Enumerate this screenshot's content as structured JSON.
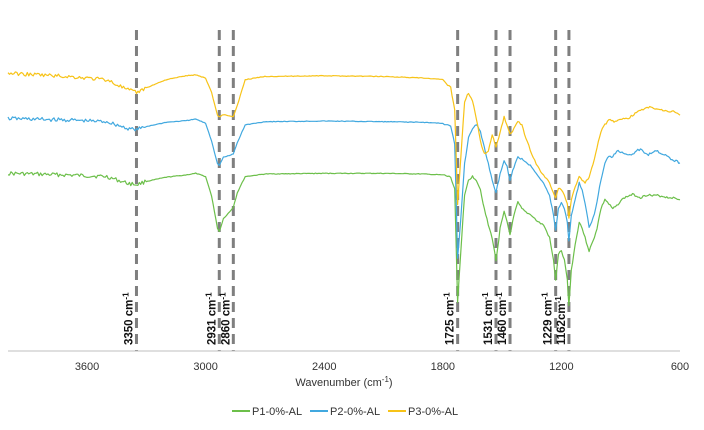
{
  "chart_data": {
    "type": "line",
    "xlabel": "Wavenumber (cm",
    "xlabel_sup": "-1",
    "xlabel_close": ")",
    "xlim": [
      4000,
      600
    ],
    "x_reversed": true,
    "xticks": [
      3600,
      3000,
      2400,
      1800,
      1200,
      600
    ],
    "xtick_labels": [
      "3600",
      "3000",
      "2400",
      "1800",
      "1200",
      "600"
    ],
    "grid": false,
    "legend_position": "bottom",
    "peaks": [
      {
        "x": 3350,
        "label": "3350 cm",
        "sup": "-1"
      },
      {
        "x": 2931,
        "label": "2931 cm",
        "sup": "-1"
      },
      {
        "x": 2860,
        "label": "2860 cm",
        "sup": "-1"
      },
      {
        "x": 1725,
        "label": "1725 cm",
        "sup": "-1"
      },
      {
        "x": 1531,
        "label": "1531 cm",
        "sup": "-1"
      },
      {
        "x": 1460,
        "label": "1460 cm",
        "sup": "-1"
      },
      {
        "x": 1229,
        "label": "1229 cm",
        "sup": "-1"
      },
      {
        "x": 1162,
        "label": "1162cm",
        "sup": "-1"
      }
    ],
    "series": [
      {
        "name": "P1-0%-AL",
        "color": "#6cbf4a",
        "x": [
          4000,
          3700,
          3500,
          3400,
          3350,
          3300,
          3200,
          3100,
          3050,
          3000,
          2970,
          2940,
          2931,
          2910,
          2880,
          2860,
          2840,
          2800,
          2700,
          2400,
          2100,
          1900,
          1800,
          1760,
          1740,
          1725,
          1710,
          1690,
          1670,
          1650,
          1630,
          1610,
          1590,
          1570,
          1550,
          1531,
          1510,
          1490,
          1475,
          1460,
          1440,
          1420,
          1400,
          1380,
          1350,
          1320,
          1290,
          1260,
          1240,
          1229,
          1215,
          1200,
          1185,
          1170,
          1162,
          1150,
          1130,
          1110,
          1095,
          1080,
          1060,
          1040,
          1020,
          1000,
          980,
          960,
          940,
          920,
          900,
          880,
          860,
          840,
          820,
          800,
          780,
          760,
          740,
          720,
          700,
          680,
          660,
          640,
          620,
          600
        ],
        "y": [
          0.45,
          0.455,
          0.46,
          0.48,
          0.485,
          0.475,
          0.462,
          0.455,
          0.45,
          0.46,
          0.52,
          0.62,
          0.63,
          0.59,
          0.57,
          0.555,
          0.51,
          0.46,
          0.452,
          0.45,
          0.45,
          0.452,
          0.455,
          0.462,
          0.5,
          0.85,
          0.7,
          0.52,
          0.47,
          0.46,
          0.47,
          0.5,
          0.56,
          0.61,
          0.65,
          0.72,
          0.62,
          0.57,
          0.6,
          0.64,
          0.58,
          0.54,
          0.56,
          0.57,
          0.58,
          0.6,
          0.61,
          0.65,
          0.72,
          0.78,
          0.7,
          0.69,
          0.72,
          0.78,
          0.86,
          0.75,
          0.67,
          0.6,
          0.62,
          0.65,
          0.69,
          0.66,
          0.62,
          0.56,
          0.53,
          0.545,
          0.56,
          0.55,
          0.535,
          0.525,
          0.52,
          0.515,
          0.52,
          0.525,
          0.52,
          0.515,
          0.52,
          0.518,
          0.52,
          0.522,
          0.525,
          0.525,
          0.528,
          0.532
        ]
      },
      {
        "name": "P2-0%-AL",
        "color": "#41a8df",
        "x": [
          4000,
          3700,
          3500,
          3400,
          3350,
          3300,
          3200,
          3100,
          3050,
          3000,
          2970,
          2940,
          2931,
          2910,
          2880,
          2860,
          2840,
          2800,
          2700,
          2400,
          2100,
          1900,
          1800,
          1760,
          1740,
          1725,
          1710,
          1690,
          1670,
          1650,
          1630,
          1610,
          1590,
          1570,
          1550,
          1531,
          1510,
          1490,
          1475,
          1460,
          1440,
          1420,
          1400,
          1380,
          1350,
          1320,
          1290,
          1260,
          1240,
          1229,
          1215,
          1200,
          1185,
          1170,
          1162,
          1150,
          1130,
          1110,
          1095,
          1080,
          1060,
          1040,
          1020,
          1000,
          980,
          960,
          940,
          920,
          900,
          880,
          860,
          840,
          820,
          800,
          780,
          760,
          740,
          720,
          700,
          680,
          660,
          640,
          620,
          600
        ],
        "y": [
          0.28,
          0.285,
          0.29,
          0.31,
          0.315,
          0.305,
          0.292,
          0.287,
          0.282,
          0.295,
          0.35,
          0.42,
          0.425,
          0.4,
          0.395,
          0.39,
          0.355,
          0.3,
          0.29,
          0.288,
          0.29,
          0.292,
          0.295,
          0.305,
          0.36,
          0.715,
          0.6,
          0.42,
          0.34,
          0.31,
          0.3,
          0.32,
          0.37,
          0.42,
          0.47,
          0.51,
          0.45,
          0.41,
          0.43,
          0.47,
          0.43,
          0.4,
          0.405,
          0.415,
          0.43,
          0.455,
          0.48,
          0.52,
          0.58,
          0.625,
          0.56,
          0.54,
          0.56,
          0.6,
          0.66,
          0.58,
          0.53,
          0.48,
          0.5,
          0.545,
          0.615,
          0.59,
          0.54,
          0.47,
          0.42,
          0.395,
          0.4,
          0.38,
          0.385,
          0.39,
          0.392,
          0.39,
          0.38,
          0.376,
          0.385,
          0.392,
          0.384,
          0.378,
          0.386,
          0.392,
          0.4,
          0.408,
          0.412,
          0.418
        ]
      },
      {
        "name": "P3-0%-AL",
        "color": "#f7c318",
        "x": [
          4000,
          3700,
          3500,
          3400,
          3350,
          3300,
          3200,
          3100,
          3050,
          3000,
          2970,
          2940,
          2931,
          2910,
          2880,
          2860,
          2840,
          2800,
          2700,
          2400,
          2100,
          1900,
          1800,
          1760,
          1740,
          1725,
          1710,
          1690,
          1670,
          1650,
          1630,
          1610,
          1590,
          1570,
          1550,
          1531,
          1510,
          1490,
          1475,
          1460,
          1440,
          1420,
          1400,
          1380,
          1350,
          1320,
          1290,
          1260,
          1240,
          1229,
          1215,
          1200,
          1185,
          1170,
          1162,
          1150,
          1130,
          1110,
          1095,
          1080,
          1060,
          1040,
          1020,
          1000,
          980,
          960,
          940,
          920,
          900,
          880,
          860,
          840,
          820,
          800,
          780,
          760,
          740,
          720,
          700,
          680,
          660,
          640,
          620,
          600
        ],
        "y": [
          0.14,
          0.15,
          0.16,
          0.19,
          0.2,
          0.185,
          0.16,
          0.148,
          0.145,
          0.155,
          0.2,
          0.27,
          0.275,
          0.268,
          0.272,
          0.275,
          0.24,
          0.16,
          0.15,
          0.148,
          0.15,
          0.155,
          0.16,
          0.185,
          0.25,
          0.545,
          0.41,
          0.23,
          0.2,
          0.225,
          0.28,
          0.35,
          0.39,
          0.38,
          0.33,
          0.37,
          0.32,
          0.275,
          0.3,
          0.33,
          0.31,
          0.29,
          0.3,
          0.34,
          0.39,
          0.43,
          0.455,
          0.48,
          0.51,
          0.525,
          0.495,
          0.5,
          0.52,
          0.545,
          0.59,
          0.53,
          0.49,
          0.46,
          0.47,
          0.48,
          0.46,
          0.42,
          0.37,
          0.32,
          0.3,
          0.285,
          0.288,
          0.29,
          0.282,
          0.278,
          0.28,
          0.27,
          0.262,
          0.255,
          0.25,
          0.245,
          0.248,
          0.25,
          0.252,
          0.255,
          0.26,
          0.255,
          0.262,
          0.27
        ]
      }
    ]
  }
}
